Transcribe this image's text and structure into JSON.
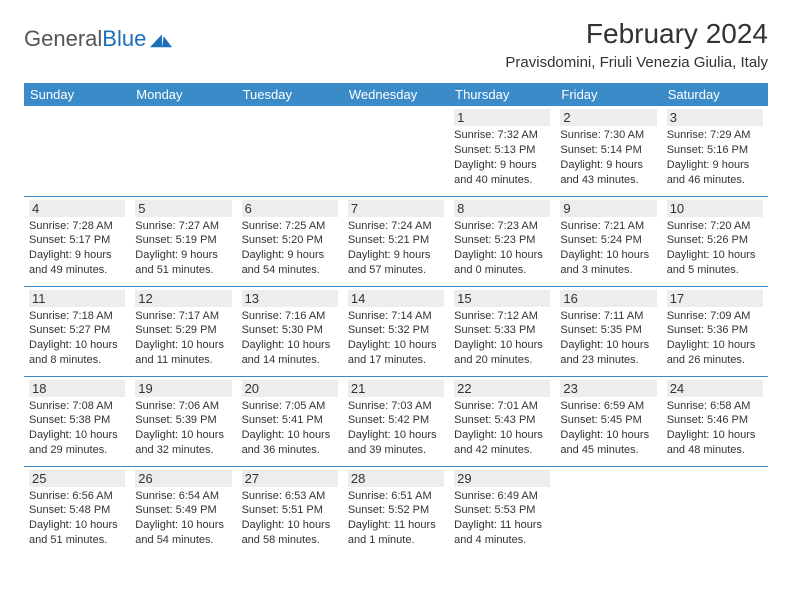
{
  "logo": {
    "text1": "General",
    "text2": "Blue"
  },
  "title": "February 2024",
  "location": "Pravisdomini, Friuli Venezia Giulia, Italy",
  "colors": {
    "header_bg": "#3b8bc9",
    "header_text": "#ffffff",
    "daynum_bg": "#ededed",
    "border": "#3b8bc9",
    "text": "#333333",
    "logo_gray": "#555555",
    "logo_blue": "#1a6fb8"
  },
  "weekdays": [
    "Sunday",
    "Monday",
    "Tuesday",
    "Wednesday",
    "Thursday",
    "Friday",
    "Saturday"
  ],
  "weeks": [
    [
      null,
      null,
      null,
      null,
      {
        "n": "1",
        "sr": "7:32 AM",
        "ss": "5:13 PM",
        "dl": "9 hours and 40 minutes."
      },
      {
        "n": "2",
        "sr": "7:30 AM",
        "ss": "5:14 PM",
        "dl": "9 hours and 43 minutes."
      },
      {
        "n": "3",
        "sr": "7:29 AM",
        "ss": "5:16 PM",
        "dl": "9 hours and 46 minutes."
      }
    ],
    [
      {
        "n": "4",
        "sr": "7:28 AM",
        "ss": "5:17 PM",
        "dl": "9 hours and 49 minutes."
      },
      {
        "n": "5",
        "sr": "7:27 AM",
        "ss": "5:19 PM",
        "dl": "9 hours and 51 minutes."
      },
      {
        "n": "6",
        "sr": "7:25 AM",
        "ss": "5:20 PM",
        "dl": "9 hours and 54 minutes."
      },
      {
        "n": "7",
        "sr": "7:24 AM",
        "ss": "5:21 PM",
        "dl": "9 hours and 57 minutes."
      },
      {
        "n": "8",
        "sr": "7:23 AM",
        "ss": "5:23 PM",
        "dl": "10 hours and 0 minutes."
      },
      {
        "n": "9",
        "sr": "7:21 AM",
        "ss": "5:24 PM",
        "dl": "10 hours and 3 minutes."
      },
      {
        "n": "10",
        "sr": "7:20 AM",
        "ss": "5:26 PM",
        "dl": "10 hours and 5 minutes."
      }
    ],
    [
      {
        "n": "11",
        "sr": "7:18 AM",
        "ss": "5:27 PM",
        "dl": "10 hours and 8 minutes."
      },
      {
        "n": "12",
        "sr": "7:17 AM",
        "ss": "5:29 PM",
        "dl": "10 hours and 11 minutes."
      },
      {
        "n": "13",
        "sr": "7:16 AM",
        "ss": "5:30 PM",
        "dl": "10 hours and 14 minutes."
      },
      {
        "n": "14",
        "sr": "7:14 AM",
        "ss": "5:32 PM",
        "dl": "10 hours and 17 minutes."
      },
      {
        "n": "15",
        "sr": "7:12 AM",
        "ss": "5:33 PM",
        "dl": "10 hours and 20 minutes."
      },
      {
        "n": "16",
        "sr": "7:11 AM",
        "ss": "5:35 PM",
        "dl": "10 hours and 23 minutes."
      },
      {
        "n": "17",
        "sr": "7:09 AM",
        "ss": "5:36 PM",
        "dl": "10 hours and 26 minutes."
      }
    ],
    [
      {
        "n": "18",
        "sr": "7:08 AM",
        "ss": "5:38 PM",
        "dl": "10 hours and 29 minutes."
      },
      {
        "n": "19",
        "sr": "7:06 AM",
        "ss": "5:39 PM",
        "dl": "10 hours and 32 minutes."
      },
      {
        "n": "20",
        "sr": "7:05 AM",
        "ss": "5:41 PM",
        "dl": "10 hours and 36 minutes."
      },
      {
        "n": "21",
        "sr": "7:03 AM",
        "ss": "5:42 PM",
        "dl": "10 hours and 39 minutes."
      },
      {
        "n": "22",
        "sr": "7:01 AM",
        "ss": "5:43 PM",
        "dl": "10 hours and 42 minutes."
      },
      {
        "n": "23",
        "sr": "6:59 AM",
        "ss": "5:45 PM",
        "dl": "10 hours and 45 minutes."
      },
      {
        "n": "24",
        "sr": "6:58 AM",
        "ss": "5:46 PM",
        "dl": "10 hours and 48 minutes."
      }
    ],
    [
      {
        "n": "25",
        "sr": "6:56 AM",
        "ss": "5:48 PM",
        "dl": "10 hours and 51 minutes."
      },
      {
        "n": "26",
        "sr": "6:54 AM",
        "ss": "5:49 PM",
        "dl": "10 hours and 54 minutes."
      },
      {
        "n": "27",
        "sr": "6:53 AM",
        "ss": "5:51 PM",
        "dl": "10 hours and 58 minutes."
      },
      {
        "n": "28",
        "sr": "6:51 AM",
        "ss": "5:52 PM",
        "dl": "11 hours and 1 minute."
      },
      {
        "n": "29",
        "sr": "6:49 AM",
        "ss": "5:53 PM",
        "dl": "11 hours and 4 minutes."
      },
      null,
      null
    ]
  ],
  "labels": {
    "sunrise": "Sunrise: ",
    "sunset": "Sunset: ",
    "daylight": "Daylight: "
  }
}
